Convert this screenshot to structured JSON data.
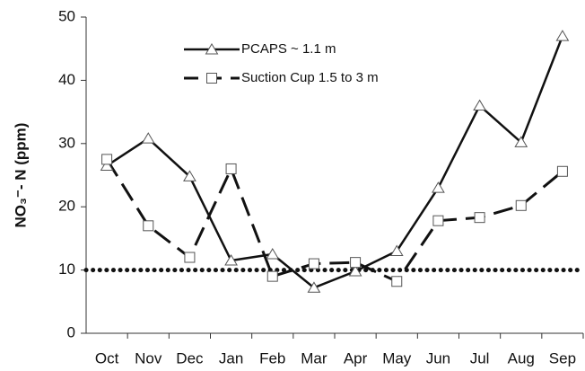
{
  "chart_data": {
    "type": "line",
    "ylabel": "NO₃⁻- N (ppm)",
    "categories": [
      "Oct",
      "Nov",
      "Dec",
      "Jan",
      "Feb",
      "Mar",
      "Apr",
      "May",
      "Jun",
      "Jul",
      "Aug",
      "Sep"
    ],
    "series": [
      {
        "name": "PCAPS ~ 1.1 m",
        "color": "#111111",
        "marker": "triangle",
        "line_style": "solid",
        "values": [
          26.5,
          30.8,
          24.8,
          11.5,
          12.5,
          7.2,
          9.8,
          13,
          23,
          36,
          30.2,
          47
        ]
      },
      {
        "name": "Suction Cup 1.5 to 3 m",
        "color": "#111111",
        "marker": "square",
        "line_style": "dashed",
        "values": [
          27.5,
          17,
          12,
          26,
          9,
          11,
          11.2,
          8.2,
          17.8,
          18.3,
          20.2,
          25.6
        ]
      }
    ],
    "reference_line": 10,
    "ylim": [
      0,
      50
    ],
    "yticks": [
      0,
      10,
      20,
      30,
      40,
      50
    ],
    "grid": false
  }
}
